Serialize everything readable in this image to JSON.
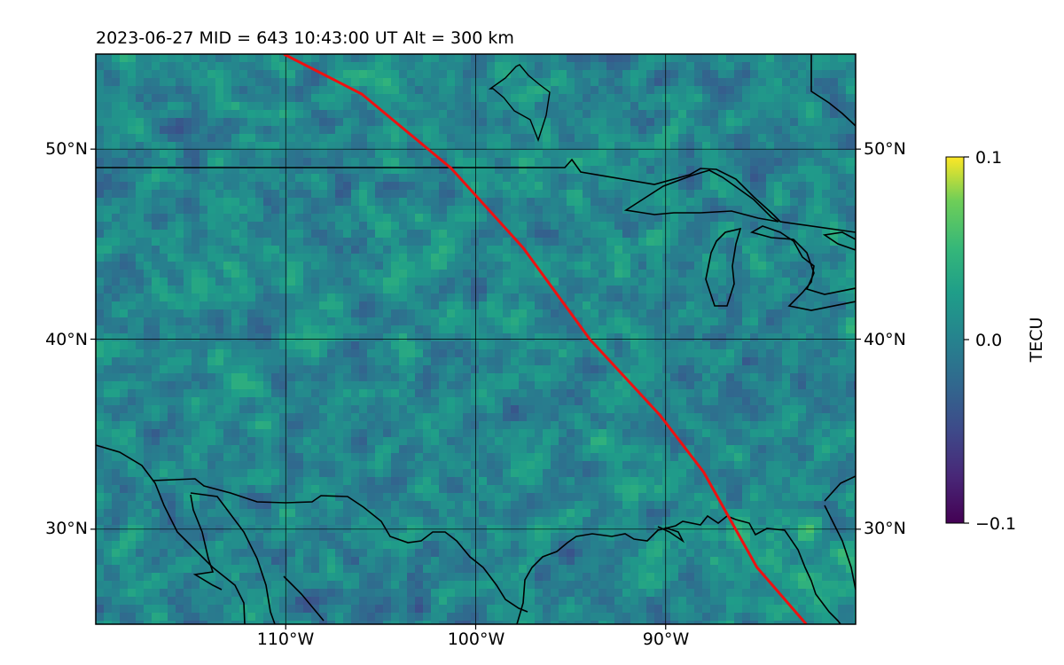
{
  "title": "2023-06-27  MID = 643    10:43:00  UT  Alt = 300 km",
  "map": {
    "lon_range": [
      -120,
      -80
    ],
    "lat_range": [
      25,
      55
    ],
    "lat_ticks": [
      {
        "value": 50,
        "label": "50°N"
      },
      {
        "value": 40,
        "label": "40°N"
      },
      {
        "value": 30,
        "label": "30°N"
      }
    ],
    "lon_ticks": [
      {
        "value": -110,
        "label": "110°W"
      },
      {
        "value": -100,
        "label": "100°W"
      },
      {
        "value": -90,
        "label": "90°W"
      }
    ],
    "gridlines": true,
    "track_color": "#ee1111",
    "track": [
      [
        -110.1,
        55
      ],
      [
        -106,
        52.9
      ],
      [
        -101.3,
        49.0
      ],
      [
        -97.5,
        44.8
      ],
      [
        -94.0,
        40.0
      ],
      [
        -90.3,
        36.0
      ],
      [
        -88.0,
        33.0
      ],
      [
        -85.2,
        28.0
      ],
      [
        -82.6,
        25.0
      ]
    ]
  },
  "colorbar": {
    "label": "TECU",
    "min": -0.1,
    "max": 0.1,
    "ticks": [
      {
        "value": 0.1,
        "label": "0.1"
      },
      {
        "value": 0.0,
        "label": "0.0"
      },
      {
        "value": -0.1,
        "label": "−0.1"
      }
    ],
    "colormap": "viridis"
  }
}
